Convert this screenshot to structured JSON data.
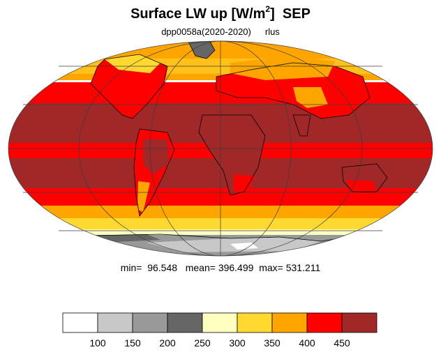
{
  "title": {
    "main": "Surface LW up [W/m",
    "sup": "2",
    "close": "]",
    "month": "SEP"
  },
  "subtitle": {
    "run": "dpp0058a(2020-2020)",
    "variable": "rlus"
  },
  "stats": {
    "min_label": "min=",
    "min_value": "96.548",
    "mean_label": "mean=",
    "mean_value": "396.499",
    "max_label": "max=",
    "max_value": "531.211"
  },
  "colorbar": {
    "colors": [
      "#ffffff",
      "#c8c8c8",
      "#999999",
      "#666666",
      "#ffffc0",
      "#ffd830",
      "#ffa500",
      "#ff0000",
      "#a02828"
    ],
    "tick_labels": [
      "100",
      "150",
      "200",
      "250",
      "300",
      "350",
      "400",
      "450"
    ]
  },
  "map": {
    "projection": "mollweide",
    "graticule_colors": "#3c3c3c",
    "coastline_color": "#000000"
  }
}
